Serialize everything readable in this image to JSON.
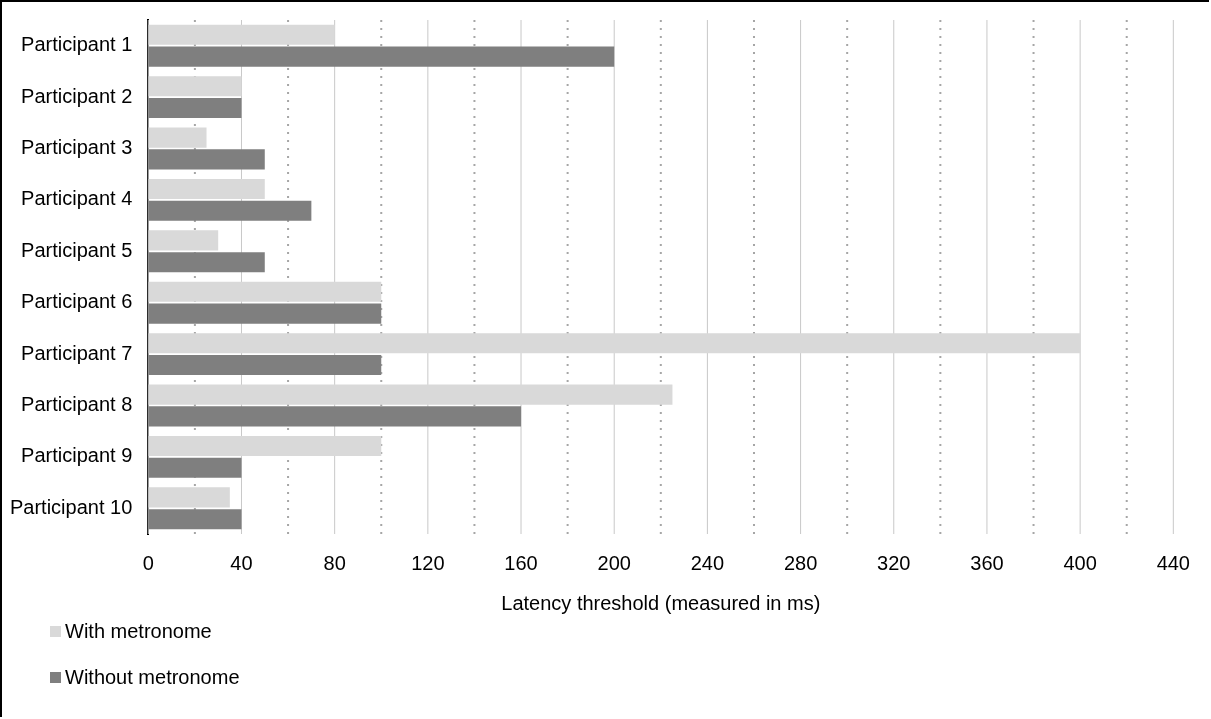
{
  "chart_data": {
    "type": "bar",
    "orientation": "horizontal",
    "xlabel": "Latency threshold (measured in ms)",
    "categories": [
      "Participant 1",
      "Participant 2",
      "Participant 3",
      "Participant 4",
      "Participant 5",
      "Participant 6",
      "Participant 7",
      "Participant 8",
      "Participant 9",
      "Participant 10"
    ],
    "series": [
      {
        "name": "With metronome",
        "color": "#d9d9d9",
        "values": [
          80,
          40,
          25,
          50,
          30,
          100,
          400,
          225,
          100,
          35
        ]
      },
      {
        "name": "Without metronome",
        "color": "#7f7f7f",
        "values": [
          200,
          40,
          50,
          70,
          50,
          100,
          100,
          160,
          40,
          40
        ]
      }
    ],
    "xlim": [
      0,
      440
    ],
    "xticks": [
      0,
      {
        "value": 20,
        "label": null
      },
      40,
      {
        "value": 60,
        "label": null
      },
      80,
      {
        "value": 100,
        "label": null
      },
      120,
      {
        "value": 140,
        "label": null
      },
      160,
      {
        "value": 180,
        "label": null
      },
      200,
      {
        "value": 220,
        "label": null
      },
      240,
      {
        "value": 260,
        "label": null
      },
      280,
      {
        "value": 300,
        "label": null
      },
      320,
      {
        "value": 340,
        "label": null
      },
      360,
      {
        "value": 380,
        "label": null
      },
      400,
      {
        "value": 420,
        "label": null
      },
      440
    ],
    "grid": "x",
    "legend": "bottom left"
  }
}
